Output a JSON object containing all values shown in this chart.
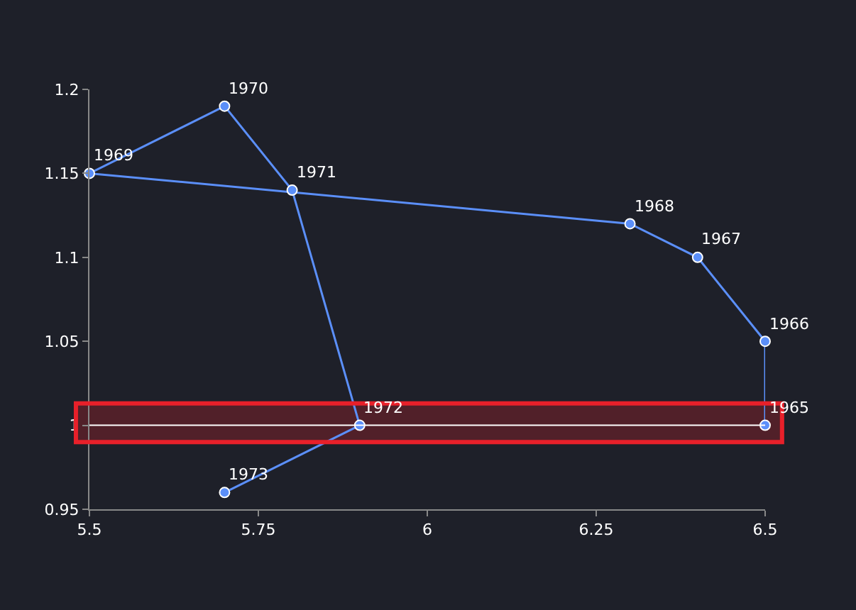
{
  "chart_data": {
    "type": "line",
    "x": [
      6.5,
      6.5,
      6.4,
      6.3,
      5.5,
      5.7,
      5.8,
      5.9,
      5.7
    ],
    "series": [
      {
        "color": "#5b8ff9",
        "values": [
          1.0,
          1.05,
          1.1,
          1.12,
          1.15,
          1.19,
          1.14,
          1.0,
          0.96
        ]
      }
    ],
    "annotations": [
      {
        "text": "1965",
        "x": 6.5,
        "y": 1.0
      },
      {
        "text": "1966",
        "x": 6.5,
        "y": 1.05
      },
      {
        "text": "1967",
        "x": 6.4,
        "y": 1.1
      },
      {
        "text": "1968",
        "x": 6.3,
        "y": 1.12
      },
      {
        "text": "1969",
        "x": 5.5,
        "y": 1.15
      },
      {
        "text": "1970",
        "x": 5.7,
        "y": 1.19
      },
      {
        "text": "1971",
        "x": 5.8,
        "y": 1.14
      },
      {
        "text": "1972",
        "x": 5.9,
        "y": 1.0
      },
      {
        "text": "1973",
        "x": 5.7,
        "y": 0.96
      }
    ],
    "xlim": [
      5.5,
      6.5
    ],
    "xticks": [
      5.5,
      5.75,
      6,
      6.25,
      6.5
    ],
    "ylim": [
      0.95,
      1.2
    ],
    "yticks": [
      0.95,
      1,
      1.05,
      1.1,
      1.15,
      1.2
    ],
    "ref_lines": [
      {
        "axis": "y",
        "value": 1,
        "color": "#ffffff"
      }
    ],
    "bands": [
      {
        "axis": "y",
        "from": 0.99,
        "to": 1.013,
        "color": "#e8202a"
      }
    ],
    "marker": "circle",
    "grid": false
  }
}
